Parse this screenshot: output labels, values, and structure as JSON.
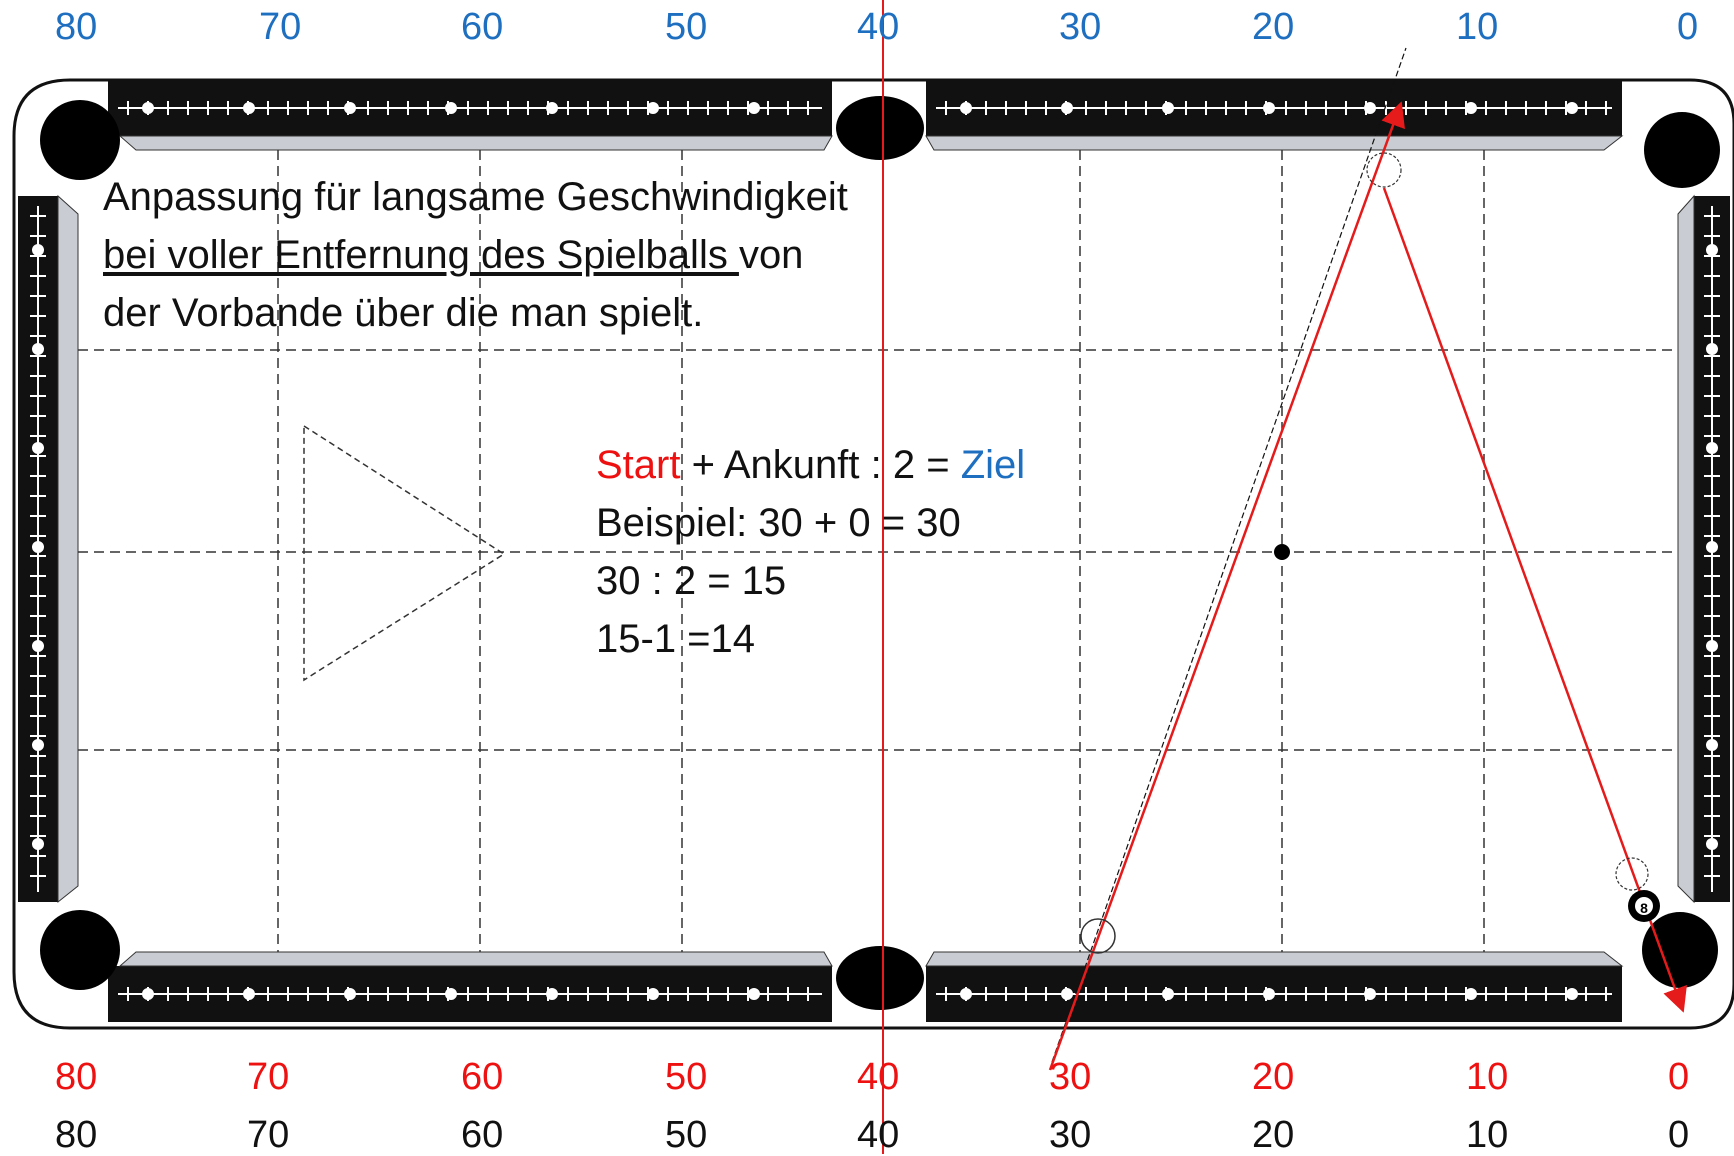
{
  "diagram": {
    "top_scale": [
      "80",
      "70",
      "60",
      "50",
      "40",
      "30",
      "20",
      "10",
      "0"
    ],
    "bottom_scale_red": [
      "80",
      "70",
      "60",
      "50",
      "40",
      "30",
      "20",
      "10",
      "0"
    ],
    "bottom_scale_black": [
      "80",
      "70",
      "60",
      "50",
      "40",
      "30",
      "20",
      "10",
      "0"
    ],
    "note": {
      "line1": "Anpassung für langsame Geschwindigkeit",
      "line2_underlined": "bei voller Entfernung des Spielballs ",
      "line2_rest": "von",
      "line3": "der Vorbande über die man spielt."
    },
    "formula": {
      "start": "Start",
      "middle": " + Ankunft : 2 = ",
      "ziel": "Ziel",
      "line2": "Beispiel:  30 + 0 = 30",
      "line3": "30 : 2 = 15",
      "line4": "15-1 =14"
    },
    "eight_ball_label": "8",
    "colors": {
      "scale_top": "#1f6fc0",
      "scale_bottom_red": "#ee1111",
      "scale_bottom_black": "#111111",
      "cue_path": "#e51b1b",
      "cloth": "#ffffff",
      "rail": "#111111"
    }
  }
}
